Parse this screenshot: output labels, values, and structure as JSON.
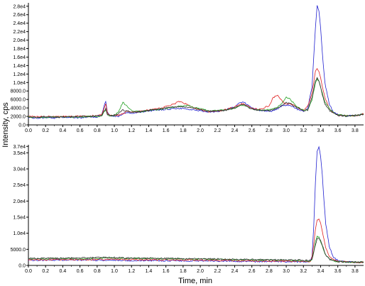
{
  "chart_data": [
    {
      "type": "line",
      "xlim": [
        0.0,
        3.9
      ],
      "ylim": [
        0,
        28800
      ],
      "xticks": [
        "0.0",
        "0.2",
        "0.4",
        "0.6",
        "0.8",
        "1.0",
        "1.2",
        "1.4",
        "1.6",
        "1.8",
        "2.0",
        "2.2",
        "2.4",
        "2.6",
        "2.8",
        "3.0",
        "3.2",
        "3.4",
        "3.6",
        "3.8"
      ],
      "yticks": [
        {
          "value": 0,
          "label": "0.0"
        },
        {
          "value": 2000,
          "label": "2000.0"
        },
        {
          "value": 4000,
          "label": "4000.0"
        },
        {
          "value": 6000,
          "label": "6000.0"
        },
        {
          "value": 8000,
          "label": "8000.0"
        },
        {
          "value": 10000,
          "label": "1.0e4"
        },
        {
          "value": 12000,
          "label": "1.2e4"
        },
        {
          "value": 14000,
          "label": "1.4e4"
        },
        {
          "value": 16000,
          "label": "1.6e4"
        },
        {
          "value": 18000,
          "label": "1.8e4"
        },
        {
          "value": 20000,
          "label": "2.0e4"
        },
        {
          "value": 22000,
          "label": "2.2e4"
        },
        {
          "value": 24000,
          "label": "2.4e4"
        },
        {
          "value": 26000,
          "label": "2.6e4"
        },
        {
          "value": 28000,
          "label": "2.8e4"
        }
      ],
      "series": [
        {
          "color": "#2020d0",
          "x": [
            0.0,
            0.1,
            0.2,
            0.3,
            0.4,
            0.5,
            0.6,
            0.7,
            0.8,
            0.85,
            0.88,
            0.9,
            0.92,
            0.95,
            1.0,
            1.05,
            1.1,
            1.15,
            1.2,
            1.3,
            1.4,
            1.5,
            1.6,
            1.7,
            1.8,
            1.85,
            1.9,
            2.0,
            2.1,
            2.2,
            2.3,
            2.4,
            2.45,
            2.5,
            2.55,
            2.6,
            2.7,
            2.8,
            2.85,
            2.9,
            2.95,
            3.0,
            3.05,
            3.1,
            3.15,
            3.2,
            3.25,
            3.3,
            3.32,
            3.34,
            3.36,
            3.38,
            3.4,
            3.42,
            3.45,
            3.5,
            3.55,
            3.6,
            3.7,
            3.8,
            3.9
          ],
          "y": [
            1700,
            1600,
            1700,
            1600,
            1800,
            1700,
            1700,
            1800,
            1900,
            2200,
            4500,
            5600,
            3000,
            2100,
            2000,
            2000,
            2600,
            3000,
            2800,
            3000,
            3300,
            3500,
            3700,
            3800,
            3900,
            3800,
            3600,
            3300,
            3000,
            3200,
            3600,
            4300,
            5300,
            5400,
            4700,
            4000,
            3400,
            3200,
            3300,
            3800,
            4500,
            4700,
            4600,
            4000,
            3500,
            3200,
            4000,
            9000,
            16000,
            23000,
            28200,
            27000,
            23000,
            17000,
            10000,
            5000,
            3000,
            2400,
            2100,
            2200,
            2500
          ]
        },
        {
          "color": "#e02020",
          "x": [
            0.0,
            0.1,
            0.2,
            0.3,
            0.4,
            0.5,
            0.6,
            0.7,
            0.8,
            0.85,
            0.88,
            0.9,
            0.92,
            0.95,
            1.0,
            1.05,
            1.1,
            1.15,
            1.2,
            1.3,
            1.4,
            1.5,
            1.6,
            1.7,
            1.75,
            1.8,
            1.85,
            1.9,
            2.0,
            2.1,
            2.2,
            2.3,
            2.4,
            2.45,
            2.5,
            2.55,
            2.6,
            2.7,
            2.8,
            2.85,
            2.9,
            2.95,
            3.0,
            3.05,
            3.1,
            3.15,
            3.2,
            3.25,
            3.3,
            3.32,
            3.34,
            3.36,
            3.38,
            3.4,
            3.42,
            3.45,
            3.5,
            3.55,
            3.6,
            3.7,
            3.8,
            3.9
          ],
          "y": [
            2000,
            1900,
            2000,
            1900,
            2000,
            2000,
            2100,
            2100,
            2200,
            2300,
            4000,
            5000,
            2800,
            2200,
            2200,
            2300,
            2600,
            3300,
            3000,
            3200,
            3500,
            3800,
            4300,
            5000,
            5600,
            5300,
            4800,
            4200,
            3600,
            3100,
            3300,
            3600,
            4200,
            4800,
            5000,
            4500,
            3900,
            3700,
            4500,
            6500,
            7000,
            5600,
            4800,
            5000,
            4500,
            3800,
            3400,
            4500,
            7500,
            10000,
            12500,
            13200,
            12500,
            11000,
            9000,
            6500,
            4000,
            2800,
            2300,
            2100,
            2200,
            2600
          ]
        },
        {
          "color": "#20a020",
          "x": [
            0.0,
            0.1,
            0.2,
            0.3,
            0.4,
            0.5,
            0.6,
            0.7,
            0.8,
            0.85,
            0.88,
            0.9,
            0.92,
            0.95,
            1.0,
            1.05,
            1.1,
            1.15,
            1.2,
            1.3,
            1.4,
            1.5,
            1.6,
            1.7,
            1.8,
            1.85,
            1.9,
            2.0,
            2.1,
            2.2,
            2.3,
            2.4,
            2.45,
            2.5,
            2.55,
            2.6,
            2.7,
            2.8,
            2.85,
            2.9,
            2.95,
            3.0,
            3.05,
            3.1,
            3.15,
            3.2,
            3.25,
            3.3,
            3.32,
            3.34,
            3.36,
            3.38,
            3.4,
            3.42,
            3.45,
            3.5,
            3.55,
            3.6,
            3.7,
            3.8,
            3.9
          ],
          "y": [
            1800,
            1700,
            1800,
            1800,
            1900,
            1800,
            1900,
            2000,
            2000,
            2100,
            3000,
            3500,
            2400,
            2100,
            2200,
            3200,
            5300,
            4500,
            3300,
            3100,
            3400,
            3600,
            3900,
            4200,
            4500,
            4600,
            4300,
            3800,
            3300,
            3400,
            3500,
            4000,
            4500,
            4700,
            4200,
            3800,
            3500,
            3500,
            3800,
            4300,
            5000,
            6500,
            6000,
            4800,
            4000,
            3500,
            3600,
            6000,
            8000,
            10000,
            10800,
            10300,
            9000,
            7500,
            5500,
            3800,
            2900,
            2400,
            2200,
            2200,
            2500
          ]
        },
        {
          "color": "#303030",
          "x": [
            0.0,
            0.1,
            0.2,
            0.3,
            0.4,
            0.5,
            0.6,
            0.7,
            0.8,
            0.85,
            0.88,
            0.9,
            0.92,
            0.95,
            1.0,
            1.05,
            1.1,
            1.15,
            1.2,
            1.3,
            1.4,
            1.5,
            1.6,
            1.7,
            1.8,
            1.85,
            1.9,
            2.0,
            2.1,
            2.2,
            2.3,
            2.4,
            2.45,
            2.5,
            2.55,
            2.6,
            2.7,
            2.8,
            2.85,
            2.9,
            2.95,
            3.0,
            3.05,
            3.1,
            3.15,
            3.2,
            3.25,
            3.3,
            3.32,
            3.34,
            3.36,
            3.38,
            3.4,
            3.42,
            3.45,
            3.5,
            3.55,
            3.6,
            3.7,
            3.8,
            3.9
          ],
          "y": [
            1800,
            1800,
            1900,
            1800,
            1900,
            1900,
            2000,
            2000,
            2100,
            2200,
            3200,
            3800,
            2500,
            2200,
            2300,
            2700,
            3500,
            3300,
            3000,
            3200,
            3400,
            3700,
            4000,
            4200,
            4300,
            4200,
            4000,
            3600,
            3200,
            3300,
            3500,
            4000,
            4600,
            4800,
            4300,
            3700,
            3400,
            3400,
            3600,
            4000,
            4500,
            5300,
            5000,
            4400,
            3800,
            3400,
            3500,
            6500,
            8500,
            10500,
            11000,
            10500,
            9000,
            7000,
            5000,
            3500,
            2700,
            2300,
            2100,
            2200,
            2500
          ]
        }
      ]
    },
    {
      "type": "line",
      "xlim": [
        0.0,
        3.9
      ],
      "ylim": [
        0,
        37500
      ],
      "ylabel": "Intensity, cps",
      "xlabel": "Time, min",
      "xticks": [
        "0.0",
        "0.2",
        "0.4",
        "0.6",
        "0.8",
        "1.0",
        "1.2",
        "1.4",
        "1.6",
        "1.8",
        "2.0",
        "2.2",
        "2.4",
        "2.6",
        "2.8",
        "3.0",
        "3.2",
        "3.4",
        "3.6",
        "3.8"
      ],
      "yticks": [
        {
          "value": 0,
          "label": "0.0"
        },
        {
          "value": 5000,
          "label": "5000.0"
        },
        {
          "value": 10000,
          "label": "1.0e4"
        },
        {
          "value": 15000,
          "label": "1.5e4"
        },
        {
          "value": 20000,
          "label": "2.0e4"
        },
        {
          "value": 25000,
          "label": "2.5e4"
        },
        {
          "value": 30000,
          "label": "3.0e4"
        },
        {
          "value": 35000,
          "label": "3.5e4"
        },
        {
          "value": 37000,
          "label": "3.7e4"
        }
      ],
      "series": [
        {
          "color": "#2020d0",
          "x": [
            0.0,
            0.3,
            0.6,
            0.9,
            1.2,
            1.5,
            1.8,
            2.1,
            2.4,
            2.7,
            3.0,
            3.2,
            3.28,
            3.3,
            3.32,
            3.34,
            3.36,
            3.38,
            3.4,
            3.42,
            3.44,
            3.46,
            3.5,
            3.55,
            3.6,
            3.7,
            3.8,
            3.9
          ],
          "y": [
            1600,
            1600,
            1700,
            1600,
            1500,
            1500,
            1400,
            1400,
            1300,
            1200,
            1200,
            1100,
            1300,
            3000,
            12000,
            26000,
            35500,
            37000,
            34000,
            28000,
            20000,
            13000,
            6000,
            2500,
            1500,
            1100,
            1000,
            1000
          ]
        },
        {
          "color": "#e02020",
          "x": [
            0.0,
            0.3,
            0.6,
            0.9,
            1.2,
            1.5,
            1.8,
            2.1,
            2.4,
            2.7,
            3.0,
            3.2,
            3.28,
            3.3,
            3.32,
            3.34,
            3.36,
            3.38,
            3.4,
            3.42,
            3.44,
            3.46,
            3.5,
            3.55,
            3.6,
            3.7,
            3.8,
            3.9
          ],
          "y": [
            1700,
            1800,
            1800,
            1900,
            1800,
            1700,
            1700,
            1600,
            1500,
            1400,
            1300,
            1200,
            1300,
            2500,
            6500,
            11000,
            14000,
            14300,
            13000,
            10500,
            8000,
            5500,
            3000,
            1800,
            1300,
            1100,
            1000,
            1000
          ]
        },
        {
          "color": "#20a020",
          "x": [
            0.0,
            0.3,
            0.6,
            0.9,
            1.2,
            1.5,
            1.8,
            2.1,
            2.4,
            2.7,
            3.0,
            3.2,
            3.28,
            3.3,
            3.32,
            3.34,
            3.36,
            3.38,
            3.4,
            3.42,
            3.44,
            3.46,
            3.5,
            3.55,
            3.6,
            3.7,
            3.8,
            3.9
          ],
          "y": [
            2000,
            2100,
            2100,
            2300,
            2200,
            2100,
            2000,
            1900,
            1800,
            1700,
            1600,
            1500,
            1400,
            2000,
            4500,
            7500,
            9000,
            8800,
            7500,
            6000,
            4500,
            3200,
            2000,
            1400,
            1200,
            1100,
            1000,
            1000
          ]
        },
        {
          "color": "#303030",
          "x": [
            0.0,
            0.3,
            0.6,
            0.9,
            1.2,
            1.5,
            1.8,
            2.1,
            2.4,
            2.7,
            3.0,
            3.2,
            3.28,
            3.3,
            3.32,
            3.34,
            3.36,
            3.38,
            3.4,
            3.42,
            3.44,
            3.46,
            3.5,
            3.55,
            3.6,
            3.7,
            3.8,
            3.9
          ],
          "y": [
            2200,
            2200,
            2300,
            2500,
            2300,
            2200,
            2100,
            2000,
            1900,
            1800,
            1700,
            1600,
            1500,
            2000,
            4000,
            6500,
            8200,
            8600,
            7800,
            6200,
            4700,
            3300,
            2000,
            1400,
            1200,
            1100,
            1000,
            1000
          ]
        }
      ]
    }
  ]
}
